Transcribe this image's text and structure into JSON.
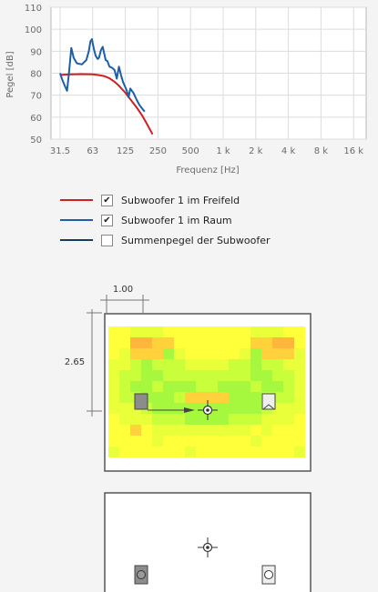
{
  "chart_data": {
    "type": "line",
    "xlabel": "Frequenz [Hz]",
    "ylabel": "Pegel [dB]",
    "x_ticks": [
      "31.5",
      "63",
      "125",
      "250",
      "500",
      "1 k",
      "2 k",
      "4 k",
      "8 k",
      "16 k"
    ],
    "y_ticks": [
      "50",
      "60",
      "70",
      "80",
      "90",
      "100",
      "110"
    ],
    "ylim": [
      50,
      110
    ],
    "x_scale": "log",
    "grid": true,
    "series": [
      {
        "name": "Subwoofer 1 im Freifeld",
        "color": "#d01f1f",
        "x": [
          31.5,
          40,
          50,
          63,
          70,
          80,
          90,
          100,
          110,
          125,
          140,
          160,
          180,
          200,
          225
        ],
        "y": [
          79.2,
          79.5,
          79.6,
          79.5,
          79.2,
          78.7,
          77.7,
          76.1,
          74.3,
          71.3,
          68.2,
          64.5,
          60.8,
          56.8,
          52.2
        ]
      },
      {
        "name": "Subwoofer 1 im Raum",
        "color": "#1c5fa6",
        "x": [
          31.5,
          33,
          35,
          36.5,
          38,
          40,
          42,
          45,
          50,
          55,
          58,
          60,
          62,
          63,
          65,
          67,
          70,
          72,
          75,
          78,
          80,
          83,
          86,
          90,
          95,
          100,
          105,
          110,
          115,
          120,
          125,
          130,
          135,
          140,
          150,
          160,
          170,
          180,
          190
        ],
        "y": [
          80,
          77,
          74,
          72,
          80,
          91.5,
          87,
          84.5,
          84,
          86,
          90,
          94.5,
          95.5,
          93.5,
          90.5,
          88,
          86.5,
          87,
          90.5,
          92,
          89.5,
          86,
          85.5,
          83,
          82.5,
          81.5,
          77.5,
          83,
          79,
          76,
          74,
          72,
          69,
          73,
          71,
          68,
          65.5,
          64,
          62.5
        ]
      }
    ]
  },
  "legend": [
    {
      "label": "Subwoofer 1 im Freifeld",
      "checked": "✔",
      "color": "#d01f1f"
    },
    {
      "label": "Subwoofer 1 im Raum",
      "checked": "✔",
      "color": "#1c5fa6"
    },
    {
      "label": "Summenpegel der Subwoofer",
      "checked": "",
      "color": "#183a5e"
    }
  ],
  "room": {
    "dim_width": "1.00",
    "dim_depth": "2.65",
    "heatmap_colors": [
      "#ffff3a",
      "#e9ff3a",
      "#c9ff3a",
      "#a6f83e",
      "#ffd13a",
      "#ffb63a"
    ]
  }
}
